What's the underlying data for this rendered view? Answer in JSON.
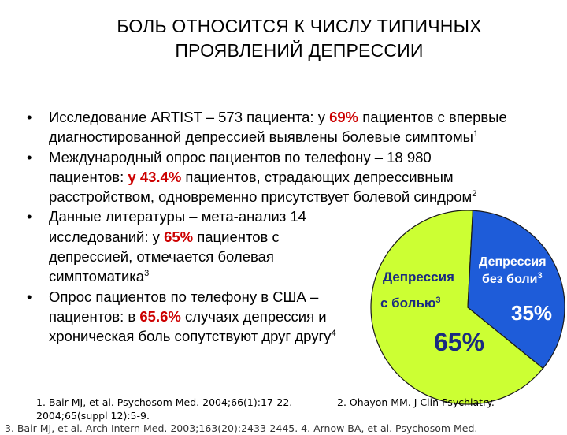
{
  "title": {
    "line1": "БОЛЬ ОТНОСИТСЯ К ЧИСЛУ ТИПИЧНЫХ",
    "line2": "ПРОЯВЛЕНИЙ ДЕПРЕССИИ"
  },
  "bullets": [
    {
      "pre": "Исследование ARTIST – 573 пациента: у ",
      "highlight": "69%",
      "post": " пациентов с впервые диагностированной депрессией выявлены болевые симптомы",
      "sup": "1"
    },
    {
      "pre": "Международный опрос пациентов по телефону – 18 980 пациентов: ",
      "highlight": "у 43.4%",
      "post": " пациентов, страдающих депрессивным расстройством, одновременно присутствует болевой синдром",
      "sup": "2"
    },
    {
      "pre": "Данные литературы – мета-анализ 14 исследований: у ",
      "highlight": "65%",
      "post": " пациентов с депрессией, отмечается болевая симптоматика",
      "sup": "3"
    },
    {
      "pre": "Опрос пациентов по телефону в США – пациентов: в ",
      "highlight": "65.6%",
      "post": " случаях депрессия и хроническая боль сопутствуют друг другу",
      "sup": "4"
    }
  ],
  "chart_data": {
    "type": "pie",
    "slices": [
      {
        "label_line1": "Депрессия",
        "label_line2": "с болью",
        "sup": "3",
        "value_label": "65%",
        "value": 65,
        "color": "#ccff33"
      },
      {
        "label_line1": "Депрессия",
        "label_line2": "без боли",
        "sup": "3",
        "value_label": "35%",
        "value": 35,
        "color": "#1e5cd9"
      }
    ]
  },
  "references": {
    "ref1": "1. Bair MJ, et al. Psychosom Med. 2004;66(1):17-22. 2004;65(suppl 12):5-9.",
    "ref2": "2. Ohayon MM. J Clin Psychiatry.",
    "ref3_partial": "3. Bair MJ, et al. Arch Intern Med. 2003;163(20):2433-2445.      4. Arnow BA, et al. Psychosom Med."
  }
}
